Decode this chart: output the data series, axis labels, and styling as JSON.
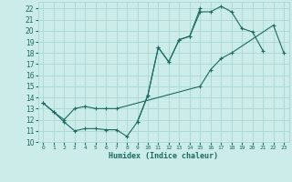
{
  "xlabel": "Humidex (Indice chaleur)",
  "bg_color": "#ccecea",
  "grid_color": "#aad8d4",
  "line_color": "#1a6b60",
  "xlim": [
    -0.5,
    23.5
  ],
  "ylim": [
    10,
    22.6
  ],
  "series1_x": [
    0,
    1,
    2,
    3,
    4,
    5,
    6,
    7,
    8,
    9,
    10,
    11,
    12,
    13,
    14,
    15,
    16,
    17,
    18,
    19,
    20,
    21
  ],
  "series1_y": [
    13.5,
    12.7,
    11.8,
    11.0,
    11.2,
    11.2,
    11.1,
    11.1,
    10.5,
    11.8,
    14.2,
    18.5,
    17.2,
    19.2,
    19.5,
    21.7,
    21.7,
    22.2,
    21.7,
    20.2,
    19.9,
    18.2
  ],
  "series2_x": [
    0,
    1,
    2,
    3,
    4,
    5,
    6,
    7,
    15,
    16,
    17,
    18,
    22,
    23
  ],
  "series2_y": [
    13.5,
    12.7,
    12.0,
    13.0,
    13.2,
    13.0,
    13.0,
    13.0,
    15.0,
    16.5,
    17.5,
    18.0,
    20.5,
    18.0
  ],
  "series3_x": [
    9,
    10,
    11,
    12,
    13,
    14,
    15
  ],
  "series3_y": [
    11.8,
    14.2,
    18.5,
    17.2,
    19.2,
    19.5,
    22.0
  ],
  "xtick_labels": [
    "0",
    "1",
    "2",
    "3",
    "4",
    "5",
    "6",
    "7",
    "8",
    "9",
    "10",
    "11",
    "12",
    "13",
    "14",
    "15",
    "16",
    "17",
    "18",
    "19",
    "20",
    "21",
    "22",
    "23"
  ],
  "ytick_labels": [
    "10",
    "11",
    "12",
    "13",
    "14",
    "15",
    "16",
    "17",
    "18",
    "19",
    "20",
    "21",
    "22"
  ]
}
